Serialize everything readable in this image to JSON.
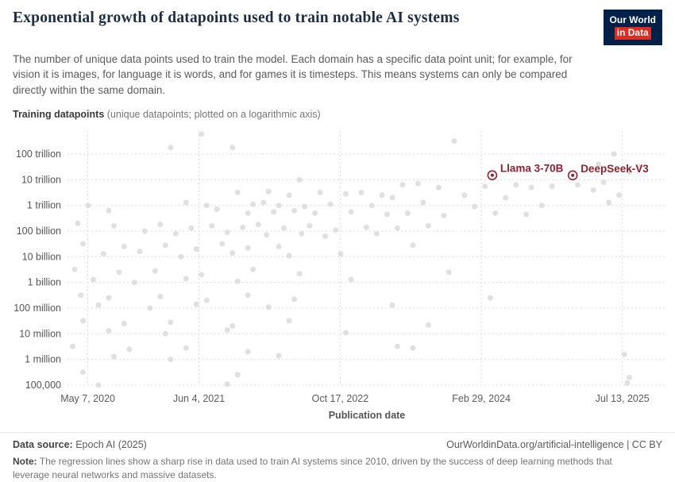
{
  "header": {
    "title": "Exponential growth of datapoints used to train notable AI systems",
    "subtitle": "The number of unique data points used to train the model. Each domain has a specific data point unit; for example, for vision it is images, for language it is words, and for games it is timesteps. This means systems can only be compared directly within the same domain.",
    "logo": {
      "line1": "Our World",
      "line2": "in Data"
    }
  },
  "axis_note": {
    "bold": "Training datapoints",
    "rest": " (unique datapoints; plotted on a logarithmic axis)"
  },
  "footer": {
    "datasource_label": "Data source:",
    "datasource_value": " Epoch AI (2025)",
    "rights": "OurWorldinData.org/artificial-intelligence | CC BY",
    "note_label": "Note:",
    "note_text": " The regression lines show a sharp rise in data used to train AI systems since 2010, driven by the success of deep learning methods that leverage neural networks and massive datasets."
  },
  "chart_data": {
    "type": "scatter",
    "title": "Exponential growth of datapoints used to train notable AI systems",
    "x_axis": {
      "label": "Publication date",
      "range": [
        2020.15,
        2025.95
      ],
      "ticks": [
        {
          "label": "May 7, 2020",
          "year": 2020.347
        },
        {
          "label": "Jun 4, 2021",
          "year": 2021.425
        },
        {
          "label": "Oct 17, 2022",
          "year": 2022.795
        },
        {
          "label": "Feb 29, 2024",
          "year": 2024.164
        },
        {
          "label": "Jul 13, 2025",
          "year": 2025.532
        }
      ]
    },
    "y_axis": {
      "scale": "log",
      "range": [
        100000.0,
        790000000000000.0
      ],
      "ticks": [
        {
          "label": "100 trillion",
          "value": 100000000000000.0
        },
        {
          "label": "10 trillion",
          "value": 10000000000000.0
        },
        {
          "label": "1 trillion",
          "value": 1000000000000.0
        },
        {
          "label": "100 billion",
          "value": 100000000000.0
        },
        {
          "label": "10 billion",
          "value": 10000000000.0
        },
        {
          "label": "1 billion",
          "value": 1000000000.0
        },
        {
          "label": "100 million",
          "value": 100000000.0
        },
        {
          "label": "10 million",
          "value": 10000000.0
        },
        {
          "label": "1 million",
          "value": 1000000.0
        },
        {
          "label": "100,000",
          "value": 100000.0
        }
      ]
    },
    "labeled_points": [
      {
        "label": "Llama 3-70B",
        "x": 2024.27,
        "value": 15000000000000.0
      },
      {
        "label": "DeepSeek-V3",
        "x": 2025.05,
        "value": 14800000000000.0
      }
    ],
    "points": [
      [
        2021.45,
        600000000000000.0
      ],
      [
        2023.9,
        320000000000000.0
      ],
      [
        2021.15,
        180000000000000.0
      ],
      [
        2021.75,
        180000000000000.0
      ],
      [
        2025.45,
        100000000000000.0
      ],
      [
        2025.7,
        32000000000000.0
      ],
      [
        2025.3,
        40000000000000.0
      ],
      [
        2022.4,
        10000000000000.0
      ],
      [
        2025.6,
        20000000000000.0
      ],
      [
        2025.35,
        8000000000000.0
      ],
      [
        2023.4,
        6300000000000.0
      ],
      [
        2023.55,
        7100000000000.0
      ],
      [
        2023.75,
        5000000000000.0
      ],
      [
        2024.2,
        5600000000000.0
      ],
      [
        2024.5,
        6300000000000.0
      ],
      [
        2024.65,
        5000000000000.0
      ],
      [
        2024.85,
        5600000000000.0
      ],
      [
        2025.1,
        6300000000000.0
      ],
      [
        2025.25,
        4000000000000.0
      ],
      [
        2021.8,
        3200000000000.0
      ],
      [
        2022.1,
        3500000000000.0
      ],
      [
        2022.3,
        2500000000000.0
      ],
      [
        2022.6,
        3200000000000.0
      ],
      [
        2022.85,
        2800000000000.0
      ],
      [
        2023.0,
        3200000000000.0
      ],
      [
        2023.2,
        2500000000000.0
      ],
      [
        2023.3,
        2000000000000.0
      ],
      [
        2024.0,
        2500000000000.0
      ],
      [
        2024.4,
        2000000000000.0
      ],
      [
        2025.5,
        2500000000000.0
      ],
      [
        2020.35,
        1000000000000.0
      ],
      [
        2021.3,
        1300000000000.0
      ],
      [
        2021.5,
        1000000000000.0
      ],
      [
        2021.95,
        1100000000000.0
      ],
      [
        2022.05,
        1300000000000.0
      ],
      [
        2022.2,
        1000000000000.0
      ],
      [
        2022.45,
        900000000000.0
      ],
      [
        2022.7,
        1100000000000.0
      ],
      [
        2023.1,
        1000000000000.0
      ],
      [
        2023.6,
        1300000000000.0
      ],
      [
        2024.1,
        900000000000.0
      ],
      [
        2024.75,
        1000000000000.0
      ],
      [
        2025.4,
        1300000000000.0
      ],
      [
        2020.55,
        630000000000.0
      ],
      [
        2021.6,
        710000000000.0
      ],
      [
        2021.9,
        500000000000.0
      ],
      [
        2022.15,
        560000000000.0
      ],
      [
        2022.35,
        630000000000.0
      ],
      [
        2022.55,
        500000000000.0
      ],
      [
        2022.9,
        560000000000.0
      ],
      [
        2023.25,
        450000000000.0
      ],
      [
        2023.45,
        500000000000.0
      ],
      [
        2023.8,
        400000000000.0
      ],
      [
        2024.3,
        500000000000.0
      ],
      [
        2024.6,
        450000000000.0
      ],
      [
        2020.25,
        200000000000.0
      ],
      [
        2020.6,
        160000000000.0
      ],
      [
        2021.05,
        180000000000.0
      ],
      [
        2021.35,
        130000000000.0
      ],
      [
        2021.55,
        160000000000.0
      ],
      [
        2021.85,
        140000000000.0
      ],
      [
        2022.0,
        180000000000.0
      ],
      [
        2022.25,
        130000000000.0
      ],
      [
        2022.5,
        160000000000.0
      ],
      [
        2022.75,
        110000000000.0
      ],
      [
        2023.05,
        140000000000.0
      ],
      [
        2023.35,
        130000000000.0
      ],
      [
        2023.65,
        160000000000.0
      ],
      [
        2020.9,
        100000000000.0
      ],
      [
        2021.2,
        79000000000.0
      ],
      [
        2021.7,
        89000000000.0
      ],
      [
        2022.08,
        71000000000.0
      ],
      [
        2022.42,
        79000000000.0
      ],
      [
        2022.65,
        63000000000.0
      ],
      [
        2023.15,
        79000000000.0
      ],
      [
        2020.3,
        32000000000.0
      ],
      [
        2020.7,
        25000000000.0
      ],
      [
        2021.1,
        28000000000.0
      ],
      [
        2021.4,
        20000000000.0
      ],
      [
        2021.65,
        32000000000.0
      ],
      [
        2021.9,
        22000000000.0
      ],
      [
        2022.2,
        25000000000.0
      ],
      [
        2023.5,
        28000000000.0
      ],
      [
        2020.5,
        13000000000.0
      ],
      [
        2020.85,
        16000000000.0
      ],
      [
        2021.25,
        10000000000.0
      ],
      [
        2021.75,
        14000000000.0
      ],
      [
        2022.3,
        11000000000.0
      ],
      [
        2022.8,
        13000000000.0
      ],
      [
        2020.22,
        3200000000.0
      ],
      [
        2020.65,
        2500000000.0
      ],
      [
        2021.0,
        2800000000.0
      ],
      [
        2021.45,
        2000000000.0
      ],
      [
        2021.95,
        3200000000.0
      ],
      [
        2022.4,
        2200000000.0
      ],
      [
        2023.85,
        2500000000.0
      ],
      [
        2020.4,
        1300000000.0
      ],
      [
        2020.8,
        1000000000.0
      ],
      [
        2021.3,
        1400000000.0
      ],
      [
        2021.8,
        1100000000.0
      ],
      [
        2022.9,
        1300000000.0
      ],
      [
        2020.28,
        320000000.0
      ],
      [
        2020.55,
        250000000.0
      ],
      [
        2021.05,
        280000000.0
      ],
      [
        2021.5,
        200000000.0
      ],
      [
        2021.9,
        320000000.0
      ],
      [
        2022.35,
        220000000.0
      ],
      [
        2024.25,
        250000000.0
      ],
      [
        2020.45,
        130000000.0
      ],
      [
        2020.95,
        100000000.0
      ],
      [
        2021.4,
        140000000.0
      ],
      [
        2022.1,
        110000000.0
      ],
      [
        2023.3,
        130000000.0
      ],
      [
        2020.3,
        32000000.0
      ],
      [
        2020.7,
        25000000.0
      ],
      [
        2021.15,
        28000000.0
      ],
      [
        2021.75,
        20000000.0
      ],
      [
        2022.3,
        32000000.0
      ],
      [
        2023.65,
        22000000.0
      ],
      [
        2020.55,
        13000000.0
      ],
      [
        2021.1,
        10000000.0
      ],
      [
        2021.7,
        14000000.0
      ],
      [
        2022.85,
        11000000.0
      ],
      [
        2020.2,
        3200000.0
      ],
      [
        2020.75,
        2500000.0
      ],
      [
        2021.3,
        2800000.0
      ],
      [
        2021.9,
        2000000.0
      ],
      [
        2023.35,
        3200000.0
      ],
      [
        2023.5,
        2800000.0
      ],
      [
        2020.6,
        1300000.0
      ],
      [
        2021.15,
        1000000.0
      ],
      [
        2022.2,
        1400000.0
      ],
      [
        2025.55,
        1600000.0
      ],
      [
        2020.3,
        320000.0
      ],
      [
        2021.8,
        250000.0
      ],
      [
        2025.6,
        200000.0
      ],
      [
        2020.45,
        100000.0
      ],
      [
        2021.7,
        110000.0
      ],
      [
        2025.58,
        120000.0
      ]
    ],
    "colors": {
      "dot": "#d8d8d8",
      "highlight": "#8c2333",
      "grid": "#dcdcdc",
      "tick_text": "#555555",
      "logo_navy": "#002147",
      "logo_red": "#dc2d25"
    },
    "legend_position": "none",
    "grid": true
  }
}
